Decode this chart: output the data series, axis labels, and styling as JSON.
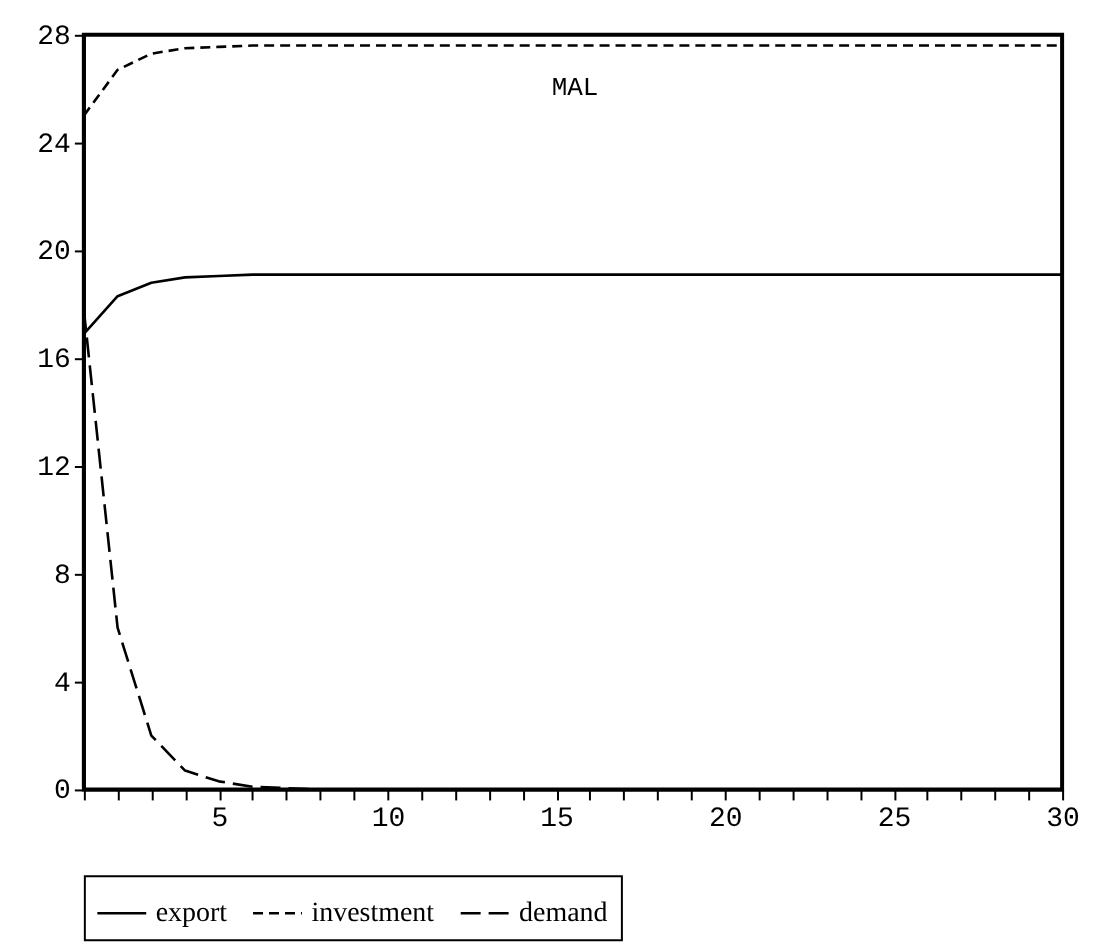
{
  "chart_data": {
    "type": "line",
    "title": "MAL",
    "x": [
      1,
      2,
      3,
      4,
      5,
      6,
      7,
      8,
      9,
      10,
      11,
      12,
      13,
      14,
      15,
      16,
      17,
      18,
      19,
      20,
      21,
      22,
      23,
      24,
      25,
      26,
      27,
      28,
      29,
      30
    ],
    "series": [
      {
        "name": "export",
        "color": "#000000",
        "line_style": "solid",
        "values": [
          16.9,
          18.3,
          18.8,
          19.0,
          19.05,
          19.1,
          19.1,
          19.1,
          19.1,
          19.1,
          19.1,
          19.1,
          19.1,
          19.1,
          19.1,
          19.1,
          19.1,
          19.1,
          19.1,
          19.1,
          19.1,
          19.1,
          19.1,
          19.1,
          19.1,
          19.1,
          19.1,
          19.1,
          19.1,
          19.1
        ]
      },
      {
        "name": "investment",
        "color": "#000000",
        "line_style": "dashed",
        "values": [
          25.0,
          26.7,
          27.3,
          27.5,
          27.55,
          27.6,
          27.6,
          27.6,
          27.6,
          27.6,
          27.6,
          27.6,
          27.6,
          27.6,
          27.6,
          27.6,
          27.6,
          27.6,
          27.6,
          27.6,
          27.6,
          27.6,
          27.6,
          27.6,
          27.6,
          27.6,
          27.6,
          27.6,
          27.6,
          27.6
        ]
      },
      {
        "name": "demand",
        "color": "#000000",
        "line_style": "longdash",
        "values": [
          17.8,
          6.0,
          2.0,
          0.7,
          0.3,
          0.1,
          0.05,
          0,
          0,
          0,
          0,
          0,
          0,
          0,
          0,
          0,
          0,
          0,
          0,
          0,
          0,
          0,
          0,
          0,
          0,
          0,
          0,
          0,
          0,
          0
        ]
      }
    ],
    "xlim": [
      1,
      30
    ],
    "xticks": [
      {
        "value": 1,
        "label": null
      },
      {
        "value": 2,
        "label": null
      },
      {
        "value": 3,
        "label": null
      },
      {
        "value": 4,
        "label": null
      },
      5,
      {
        "value": 6,
        "label": null
      },
      {
        "value": 7,
        "label": null
      },
      {
        "value": 8,
        "label": null
      },
      {
        "value": 9,
        "label": null
      },
      10,
      {
        "value": 11,
        "label": null
      },
      {
        "value": 12,
        "label": null
      },
      {
        "value": 13,
        "label": null
      },
      {
        "value": 14,
        "label": null
      },
      15,
      {
        "value": 16,
        "label": null
      },
      {
        "value": 17,
        "label": null
      },
      {
        "value": 18,
        "label": null
      },
      {
        "value": 19,
        "label": null
      },
      20,
      {
        "value": 21,
        "label": null
      },
      {
        "value": 22,
        "label": null
      },
      {
        "value": 23,
        "label": null
      },
      {
        "value": 24,
        "label": null
      },
      25,
      {
        "value": 26,
        "label": null
      },
      {
        "value": 27,
        "label": null
      },
      {
        "value": 28,
        "label": null
      },
      {
        "value": 29,
        "label": null
      },
      30
    ],
    "ylim": [
      0,
      28
    ],
    "yticks": [
      0,
      4,
      8,
      12,
      16,
      20,
      24,
      28
    ],
    "grid": false,
    "legend": "bottom",
    "marker": "none"
  }
}
